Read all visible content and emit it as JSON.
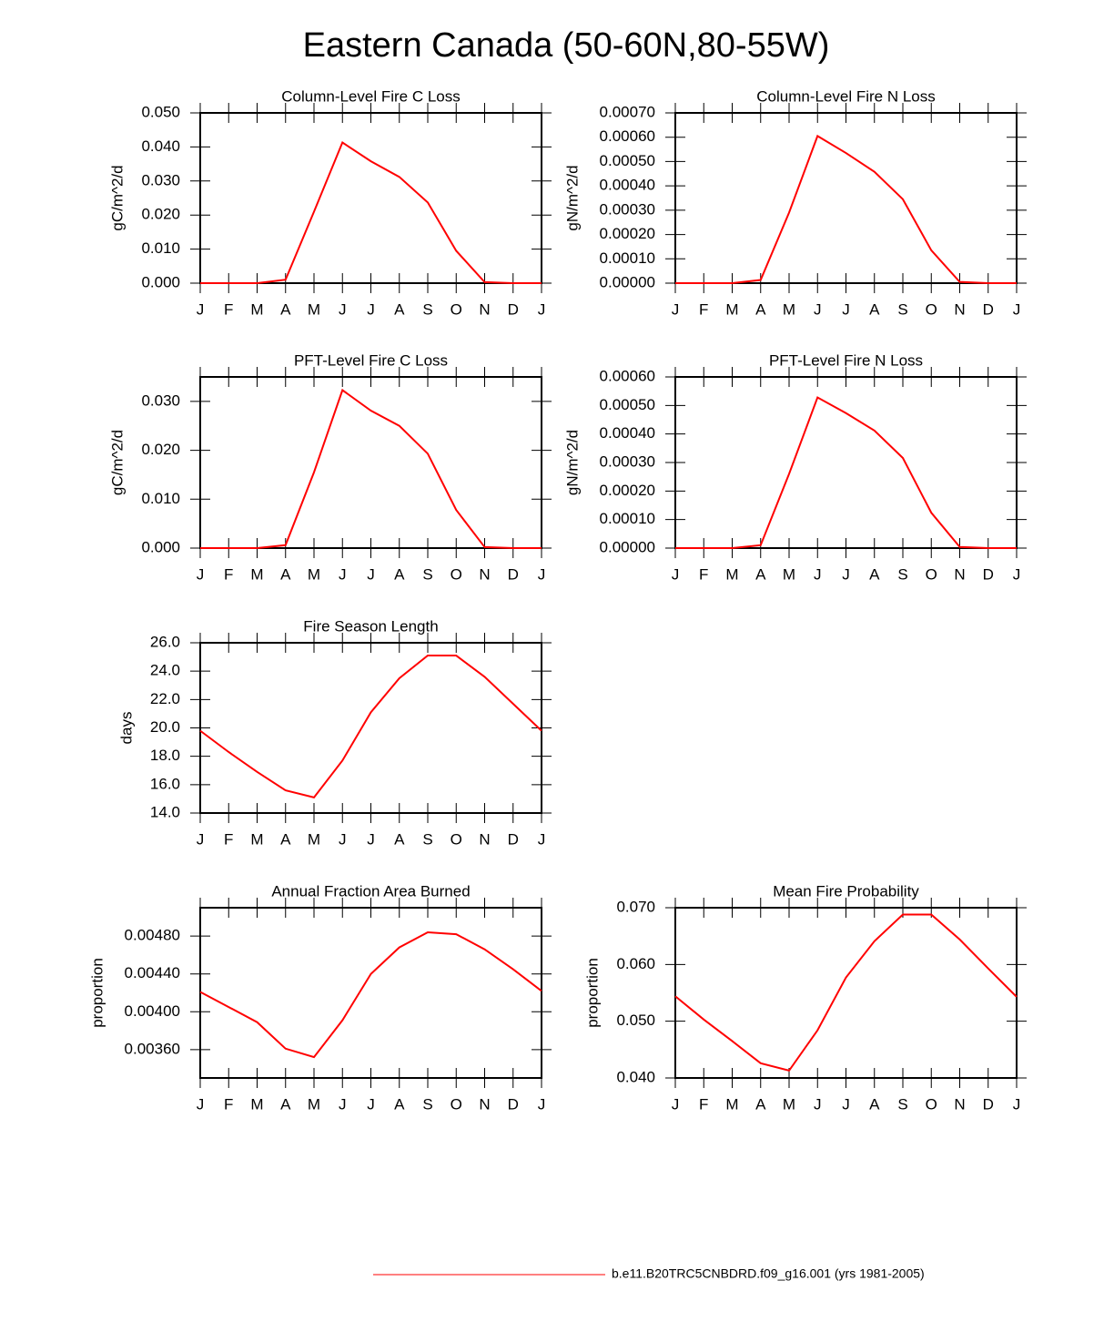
{
  "title": "Eastern Canada (50-60N,80-55W)",
  "legend": {
    "name": "b.e11.B20TRC5CNBDRD.f09_g16.001 (yrs 1981-2005)",
    "color": "#ff0000"
  },
  "chart_data": [
    {
      "type": "line",
      "title": "Column-Level Fire C Loss",
      "ylabel": "gC/m^2/d",
      "categories": [
        "J",
        "F",
        "M",
        "A",
        "M",
        "J",
        "J",
        "A",
        "S",
        "O",
        "N",
        "D",
        "J"
      ],
      "series": [
        {
          "color": "#ff0000",
          "values": [
            0,
            0,
            0,
            0.001,
            0.021,
            0.0413,
            0.0358,
            0.0312,
            0.0237,
            0.0095,
            0.0003,
            0,
            0
          ]
        }
      ],
      "ylim": [
        0,
        0.05
      ],
      "yticks": [
        {
          "value": 0,
          "label": "0.000"
        },
        {
          "value": 0.01,
          "label": "0.010"
        },
        {
          "value": 0.02,
          "label": "0.020"
        },
        {
          "value": 0.03,
          "label": "0.030"
        },
        {
          "value": 0.04,
          "label": "0.040"
        },
        {
          "value": 0.05,
          "label": "0.050"
        }
      ]
    },
    {
      "type": "line",
      "title": "Column-Level Fire N Loss",
      "ylabel": "gN/m^2/d",
      "categories": [
        "J",
        "F",
        "M",
        "A",
        "M",
        "J",
        "J",
        "A",
        "S",
        "O",
        "N",
        "D",
        "J"
      ],
      "series": [
        {
          "color": "#ff0000",
          "values": [
            0,
            0,
            0,
            1.3e-05,
            0.00029,
            0.000605,
            0.000535,
            0.000458,
            0.000345,
            0.000135,
            5e-06,
            0,
            0
          ]
        }
      ],
      "ylim": [
        0,
        0.0007
      ],
      "yticks": [
        {
          "value": 0,
          "label": "0.00000"
        },
        {
          "value": 0.0001,
          "label": "0.00010"
        },
        {
          "value": 0.0002,
          "label": "0.00020"
        },
        {
          "value": 0.0003,
          "label": "0.00030"
        },
        {
          "value": 0.0004,
          "label": "0.00040"
        },
        {
          "value": 0.0005,
          "label": "0.00050"
        },
        {
          "value": 0.0006,
          "label": "0.00060"
        },
        {
          "value": 0.0007,
          "label": "0.00070"
        }
      ]
    },
    {
      "type": "line",
      "title": "PFT-Level Fire C Loss",
      "ylabel": "gC/m^2/d",
      "categories": [
        "J",
        "F",
        "M",
        "A",
        "M",
        "J",
        "J",
        "A",
        "S",
        "O",
        "N",
        "D",
        "J"
      ],
      "series": [
        {
          "color": "#ff0000",
          "values": [
            0,
            0,
            0,
            0.0006,
            0.0155,
            0.0323,
            0.0281,
            0.025,
            0.0193,
            0.0078,
            0.0002,
            0,
            0
          ]
        }
      ],
      "ylim": [
        0,
        0.035
      ],
      "yticks": [
        {
          "value": 0,
          "label": "0.000"
        },
        {
          "value": 0.01,
          "label": "0.010"
        },
        {
          "value": 0.02,
          "label": "0.020"
        },
        {
          "value": 0.03,
          "label": "0.030"
        }
      ]
    },
    {
      "type": "line",
      "title": "PFT-Level Fire N Loss",
      "ylabel": "gN/m^2/d",
      "categories": [
        "J",
        "F",
        "M",
        "A",
        "M",
        "J",
        "J",
        "A",
        "S",
        "O",
        "N",
        "D",
        "J"
      ],
      "series": [
        {
          "color": "#ff0000",
          "values": [
            0,
            0,
            0,
            1e-05,
            0.00026,
            0.000528,
            0.000473,
            0.000412,
            0.000316,
            0.000124,
            4e-06,
            0,
            0
          ]
        }
      ],
      "ylim": [
        0,
        0.0006
      ],
      "yticks": [
        {
          "value": 0,
          "label": "0.00000"
        },
        {
          "value": 0.0001,
          "label": "0.00010"
        },
        {
          "value": 0.0002,
          "label": "0.00020"
        },
        {
          "value": 0.0003,
          "label": "0.00030"
        },
        {
          "value": 0.0004,
          "label": "0.00040"
        },
        {
          "value": 0.0005,
          "label": "0.00050"
        },
        {
          "value": 0.0006,
          "label": "0.00060"
        }
      ]
    },
    {
      "type": "line",
      "title": "Fire Season Length",
      "ylabel": "days",
      "categories": [
        "J",
        "F",
        "M",
        "A",
        "M",
        "J",
        "J",
        "A",
        "S",
        "O",
        "N",
        "D",
        "J"
      ],
      "series": [
        {
          "color": "#ff0000",
          "values": [
            19.8,
            18.3,
            16.9,
            15.6,
            15.1,
            17.7,
            21.1,
            23.5,
            25.1,
            25.1,
            23.6,
            21.7,
            19.8
          ]
        }
      ],
      "ylim": [
        14,
        26
      ],
      "yticks": [
        {
          "value": 14,
          "label": "14.0"
        },
        {
          "value": 16,
          "label": "16.0"
        },
        {
          "value": 18,
          "label": "18.0"
        },
        {
          "value": 20,
          "label": "20.0"
        },
        {
          "value": 22,
          "label": "22.0"
        },
        {
          "value": 24,
          "label": "24.0"
        },
        {
          "value": 26,
          "label": "26.0"
        }
      ]
    },
    {
      "type": "line",
      "title": "Annual Fraction Area Burned",
      "ylabel": "proportion",
      "categories": [
        "J",
        "F",
        "M",
        "A",
        "M",
        "J",
        "J",
        "A",
        "S",
        "O",
        "N",
        "D",
        "J"
      ],
      "series": [
        {
          "color": "#ff0000",
          "values": [
            0.00421,
            0.00405,
            0.00389,
            0.00361,
            0.00352,
            0.00391,
            0.0044,
            0.00468,
            0.00484,
            0.00482,
            0.00466,
            0.00445,
            0.00422
          ]
        }
      ],
      "ylim": [
        0.0033,
        0.0051
      ],
      "yticks": [
        {
          "value": 0.0036,
          "label": "0.00360"
        },
        {
          "value": 0.004,
          "label": "0.00400"
        },
        {
          "value": 0.0044,
          "label": "0.00440"
        },
        {
          "value": 0.0048,
          "label": "0.00480"
        }
      ]
    },
    {
      "type": "line",
      "title": "Mean Fire Probability",
      "ylabel": "proportion",
      "categories": [
        "J",
        "F",
        "M",
        "A",
        "M",
        "J",
        "J",
        "A",
        "S",
        "O",
        "N",
        "D",
        "J"
      ],
      "series": [
        {
          "color": "#ff0000",
          "values": [
            0.0544,
            0.0503,
            0.0465,
            0.0426,
            0.0413,
            0.0484,
            0.0577,
            0.0641,
            0.0688,
            0.0688,
            0.0644,
            0.0593,
            0.0543
          ]
        }
      ],
      "ylim": [
        0.04,
        0.07
      ],
      "yticks": [
        {
          "value": 0.04,
          "label": "0.040"
        },
        {
          "value": 0.05,
          "label": "0.050"
        },
        {
          "value": 0.06,
          "label": "0.060"
        },
        {
          "value": 0.07,
          "label": "0.070"
        }
      ]
    }
  ]
}
